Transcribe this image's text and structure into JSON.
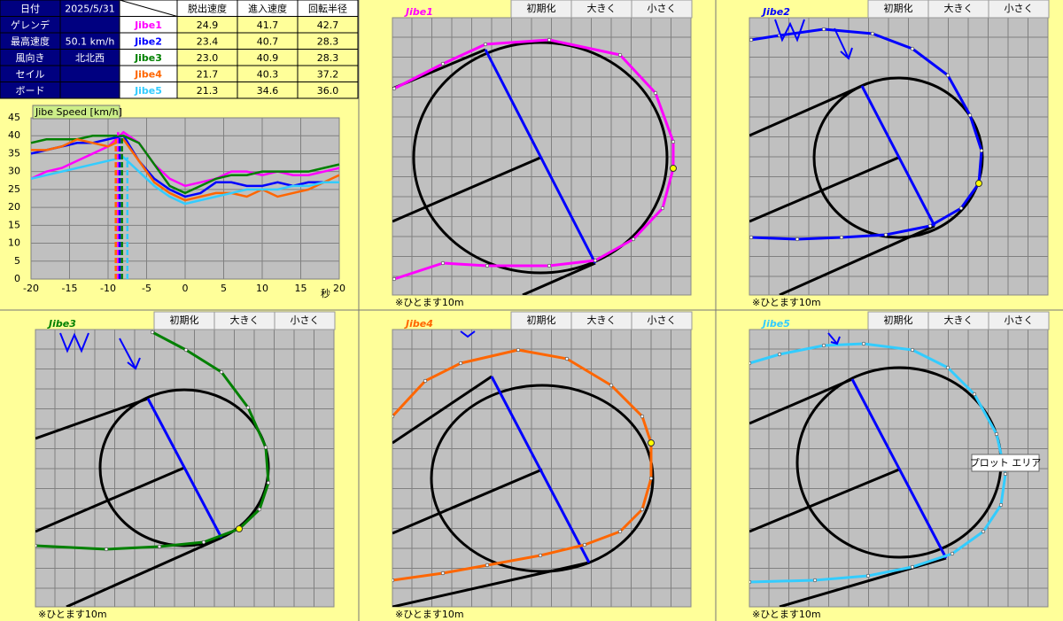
{
  "table": {
    "header": {
      "label": "日付",
      "date": "2025/5/31",
      "columns": [
        "脱出速度",
        "進入速度",
        "回転半径"
      ]
    },
    "rows": [
      {
        "label": "ゲレンデ",
        "jibe": "Jibe1",
        "values": [
          "24.9",
          "41.7",
          "42.7"
        ]
      },
      {
        "label": "最高速度",
        "info": "50.1 km/h",
        "jibe": "Jibe2",
        "values": [
          "23.4",
          "40.7",
          "28.3"
        ]
      },
      {
        "label": "風向き",
        "info": "北北西",
        "jibe": "Jibe3",
        "values": [
          "23.0",
          "40.9",
          "28.3"
        ]
      },
      {
        "label": "セイル",
        "jibe": "Jibe4",
        "values": [
          "21.7",
          "40.3",
          "37.2"
        ]
      },
      {
        "label": "ボード",
        "jibe": "Jibe5",
        "values": [
          "21.3",
          "34.6",
          "36.0"
        ]
      }
    ]
  },
  "chart_data": {
    "type": "line",
    "title": "Jibe Speed [km/h]",
    "x_label": "秒",
    "x": [
      -20,
      -18,
      -16,
      -14,
      -12,
      -10,
      -8,
      -6,
      -4,
      -2,
      0,
      2,
      4,
      6,
      8,
      10,
      12,
      14,
      16,
      18,
      20
    ],
    "series": [
      {
        "color": "#ff00ff",
        "jibe_x": -8.7,
        "values": [
          28,
          30,
          31,
          33,
          35,
          37,
          41,
          38,
          32,
          28,
          26,
          27,
          28,
          30,
          30,
          29,
          30,
          29,
          29,
          30,
          31
        ]
      },
      {
        "color": "#0000ff",
        "jibe_x": -8.5,
        "values": [
          35,
          36,
          37,
          38,
          38,
          39,
          40,
          33,
          28,
          25,
          23,
          24,
          27,
          27,
          26,
          26,
          27,
          26,
          27,
          27,
          27
        ]
      },
      {
        "color": "#008000",
        "jibe_x": -8.2,
        "values": [
          38,
          39,
          39,
          39,
          40,
          40,
          40,
          38,
          32,
          26,
          24,
          26,
          28,
          29,
          29,
          30,
          30,
          30,
          30,
          31,
          32
        ]
      },
      {
        "color": "#ff6600",
        "jibe_x": -9,
        "values": [
          36,
          36,
          37,
          39,
          38,
          37,
          39,
          33,
          27,
          24,
          22,
          23,
          24,
          24,
          23,
          25,
          23,
          24,
          25,
          27,
          29
        ]
      },
      {
        "color": "#33ccff",
        "jibe_x": -7.5,
        "values": [
          28,
          29,
          30,
          31,
          32,
          33,
          34,
          30,
          26,
          23,
          21,
          22,
          23,
          24,
          25,
          25,
          25,
          26,
          26,
          27,
          27
        ]
      }
    ],
    "xlim": [
      -20,
      20
    ],
    "ylim": [
      0,
      45
    ],
    "xticks": [
      -20,
      -15,
      -10,
      -5,
      0,
      5,
      10,
      15,
      20
    ],
    "yticks": [
      0,
      5,
      10,
      15,
      20,
      25,
      30,
      35,
      40,
      45
    ],
    "grid": true
  },
  "panels": [
    {
      "title": "Jibe1",
      "color": "#ff00ff"
    },
    {
      "title": "Jibe2",
      "color": "#0000ff"
    },
    {
      "title": "Jibe3",
      "color": "#008000"
    },
    {
      "title": "Jibe4",
      "color": "#ff6600"
    },
    {
      "title": "Jibe5",
      "color": "#33ccff"
    }
  ],
  "buttons": [
    "初期化",
    "大きく",
    "小さく"
  ],
  "note": "※ひとます10m",
  "tooltip": "プロット エリア"
}
